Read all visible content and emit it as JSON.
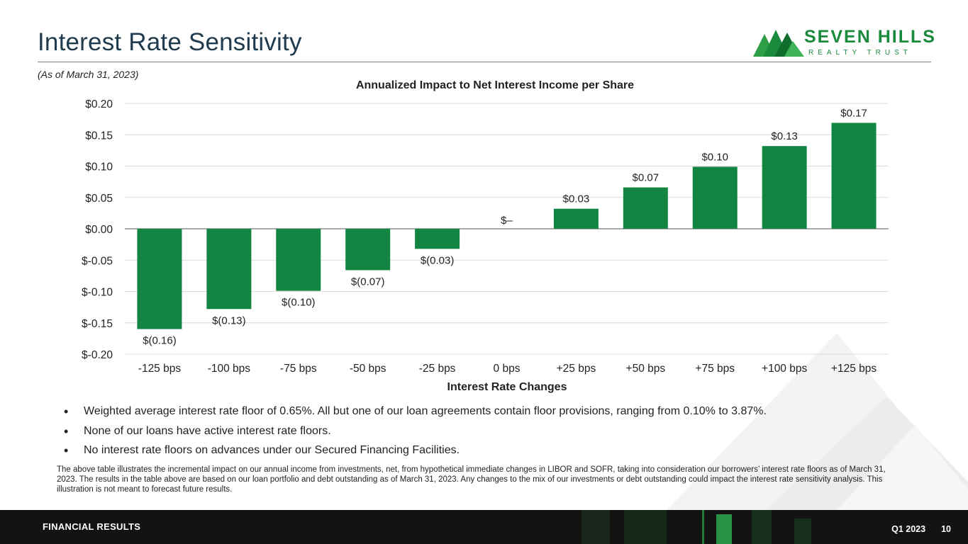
{
  "slide": {
    "title": "Interest Rate Sensitivity",
    "as_of": "(As of March 31, 2023)"
  },
  "logo": {
    "name": "SEVEN HILLS",
    "tagline": "REALTY TRUST"
  },
  "colors": {
    "bar": "#138542",
    "brand_green": "#1a8a3c",
    "footer_bg": "#131313"
  },
  "chart_data": {
    "type": "bar",
    "title": "Annualized Impact to Net Interest Income per Share",
    "xlabel": "Interest Rate Changes",
    "ylabel": "",
    "categories": [
      "-125 bps",
      "-100 bps",
      "-75 bps",
      "-50 bps",
      "-25 bps",
      "0 bps",
      "+25 bps",
      "+50 bps",
      "+75 bps",
      "+100 bps",
      "+125 bps"
    ],
    "values": [
      -0.16,
      -0.128,
      -0.099,
      -0.066,
      -0.032,
      0.0,
      0.032,
      0.066,
      0.099,
      0.132,
      0.169
    ],
    "data_labels": [
      "$(0.16)",
      "$(0.13)",
      "$(0.10)",
      "$(0.07)",
      "$(0.03)",
      "$–",
      "$0.03",
      "$0.07",
      "$0.10",
      "$0.13",
      "$0.17"
    ],
    "ylim": [
      -0.2,
      0.2
    ],
    "yticks": [
      0.2,
      0.15,
      0.1,
      0.05,
      0.0,
      -0.05,
      -0.1,
      -0.15,
      -0.2
    ],
    "ytick_labels": [
      "$0.20",
      "$0.15",
      "$0.10",
      "$0.05",
      "$0.00",
      "$-0.05",
      "$-0.10",
      "$-0.15",
      "$-0.20"
    ],
    "grid": true
  },
  "bullets": [
    "Weighted average interest rate floor of 0.65%. All but one of our loan agreements contain floor provisions, ranging from 0.10% to 3.87%.",
    "None of our loans have active interest rate floors.",
    "No interest rate floors on advances under our Secured Financing Facilities."
  ],
  "footnote": "The above table illustrates the incremental impact on our annual income from investments, net, from hypothetical immediate changes in LIBOR and SOFR, taking into consideration our borrowers’ interest rate floors as of March 31, 2023. The results in the table above are based on our loan portfolio and debt outstanding as of March 31, 2023. Any changes to the mix of our investments or debt outstanding could impact the interest rate sensitivity analysis. This illustration is not meant to forecast future results.",
  "footer": {
    "section": "FINANCIAL RESULTS",
    "period": "Q1 2023",
    "page": "10"
  }
}
